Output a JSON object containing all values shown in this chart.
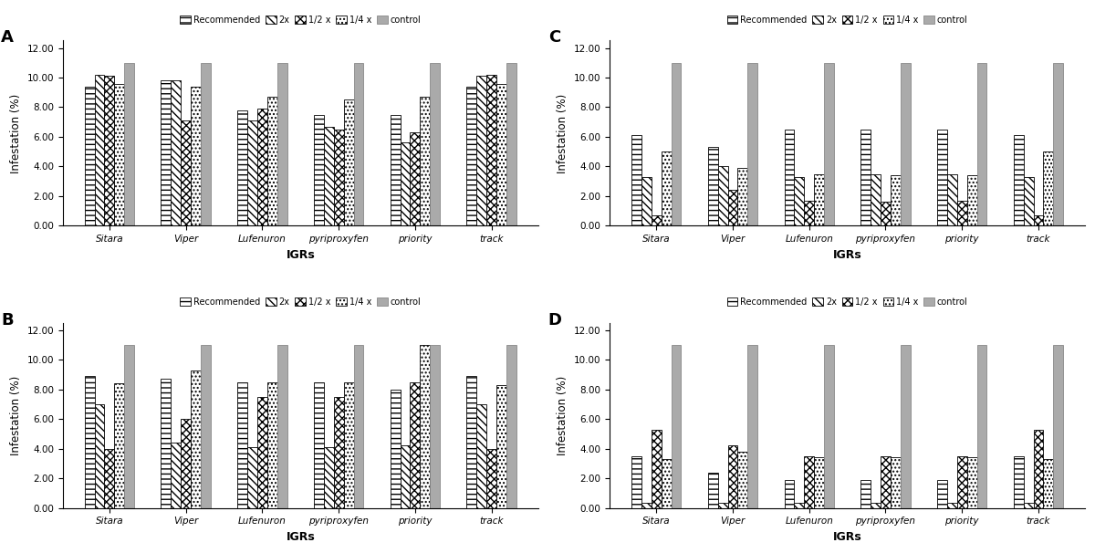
{
  "categories": [
    "Sitara",
    "Viper",
    "Lufenuron",
    "pyriproxyfen",
    "priority",
    "track"
  ],
  "legend_labels": [
    "Recommended",
    "2x",
    "1/2 x",
    "1/4 x",
    "control"
  ],
  "xlabel": "IGRs",
  "ylabel": "Infestation (%)",
  "ylim": [
    0,
    12.5
  ],
  "yticks": [
    0.0,
    2.0,
    4.0,
    6.0,
    8.0,
    10.0,
    12.0
  ],
  "subplot_labels": [
    "A",
    "B",
    "C",
    "D"
  ],
  "A_data": [
    [
      9.4,
      10.2,
      10.1,
      9.6,
      11.0
    ],
    [
      9.8,
      9.8,
      7.1,
      9.4,
      11.0
    ],
    [
      7.8,
      7.1,
      7.9,
      8.7,
      11.0
    ],
    [
      7.5,
      6.7,
      6.5,
      8.5,
      11.0
    ],
    [
      7.5,
      5.6,
      6.3,
      8.7,
      11.0
    ],
    [
      9.4,
      10.1,
      10.2,
      9.6,
      11.0
    ]
  ],
  "B_data": [
    [
      8.9,
      7.0,
      4.0,
      8.4,
      11.0
    ],
    [
      8.7,
      4.4,
      6.0,
      9.3,
      11.0
    ],
    [
      8.5,
      4.1,
      7.5,
      8.5,
      11.0
    ],
    [
      8.5,
      4.1,
      7.5,
      8.5,
      11.0
    ],
    [
      8.0,
      4.2,
      8.5,
      11.0,
      11.0
    ],
    [
      8.9,
      7.0,
      4.0,
      8.3,
      11.0
    ]
  ],
  "C_data": [
    [
      6.1,
      3.3,
      0.7,
      5.0,
      11.0
    ],
    [
      5.3,
      4.0,
      2.4,
      3.9,
      11.0
    ],
    [
      6.5,
      3.3,
      1.7,
      3.5,
      11.0
    ],
    [
      6.5,
      3.5,
      1.6,
      3.4,
      11.0
    ],
    [
      6.5,
      3.5,
      1.7,
      3.4,
      11.0
    ],
    [
      6.1,
      3.3,
      0.7,
      5.0,
      11.0
    ]
  ],
  "D_data": [
    [
      3.5,
      0.33,
      5.3,
      3.3,
      11.0
    ],
    [
      2.4,
      0.33,
      4.2,
      3.8,
      11.0
    ],
    [
      1.9,
      0.33,
      3.5,
      3.4,
      11.0
    ],
    [
      1.9,
      0.33,
      3.5,
      3.4,
      11.0
    ],
    [
      1.9,
      0.33,
      3.5,
      3.4,
      11.0
    ],
    [
      3.5,
      0.33,
      5.3,
      3.3,
      11.0
    ]
  ]
}
